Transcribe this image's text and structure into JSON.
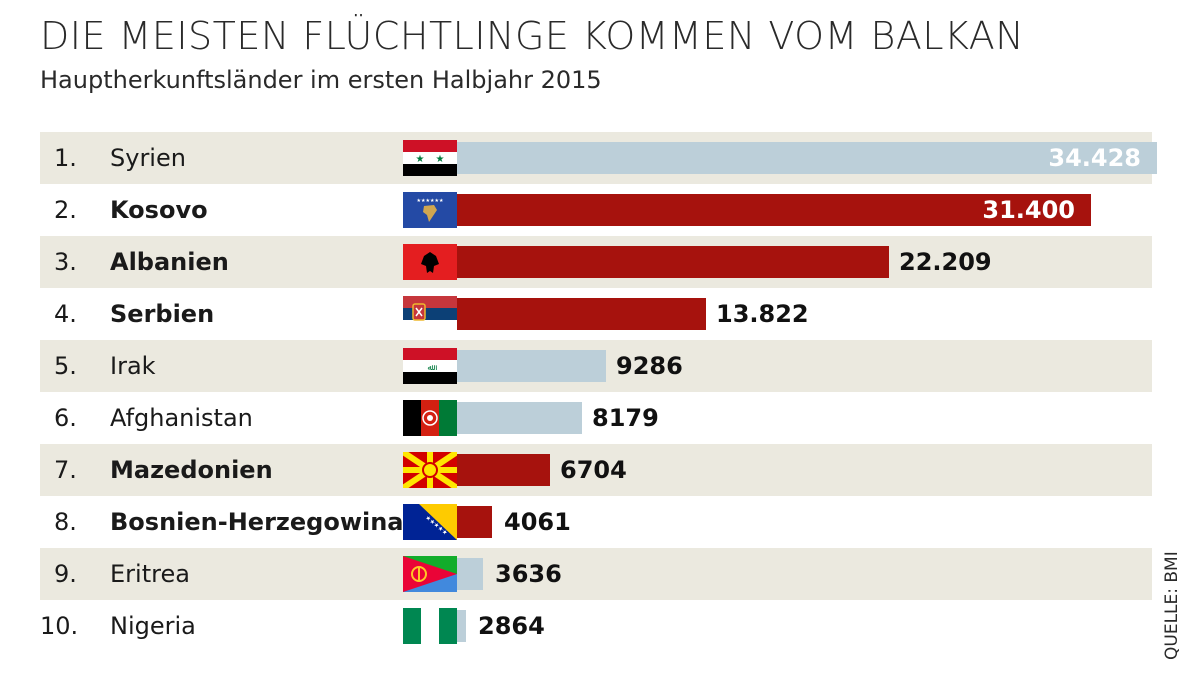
{
  "title": "DIE MEISTEN FLÜCHTLINGE KOMMEN VOM BALKAN",
  "subtitle": "Hauptherkunftsländer im ersten Halbjahr 2015",
  "source": "QUELLE: BMI",
  "colors": {
    "balkan": "#a6120d",
    "other": "#bccfd9",
    "stripe": "#ebe9df"
  },
  "chart_data": {
    "type": "bar",
    "orientation": "horizontal",
    "title": "DIE MEISTEN FLÜCHTLINGE KOMMEN VOM BALKAN",
    "subtitle": "Hauptherkunftsländer im ersten Halbjahr 2015",
    "xlim": [
      0,
      34428
    ],
    "grid": false,
    "legend": "none",
    "items": [
      {
        "rank": "1.",
        "country": "Syrien",
        "value": 34428,
        "label": "34.428",
        "balkan": false,
        "flag": "syria-flag-icon"
      },
      {
        "rank": "2.",
        "country": "Kosovo",
        "value": 31400,
        "label": "31.400",
        "balkan": true,
        "flag": "kosovo-flag-icon"
      },
      {
        "rank": "3.",
        "country": "Albanien",
        "value": 22209,
        "label": "22.209",
        "balkan": true,
        "flag": "albania-flag-icon"
      },
      {
        "rank": "4.",
        "country": "Serbien",
        "value": 13822,
        "label": "13.822",
        "balkan": true,
        "flag": "serbia-flag-icon"
      },
      {
        "rank": "5.",
        "country": "Irak",
        "value": 9286,
        "label": "9286",
        "balkan": false,
        "flag": "iraq-flag-icon"
      },
      {
        "rank": "6.",
        "country": "Afghanistan",
        "value": 8179,
        "label": "8179",
        "balkan": false,
        "flag": "afghanistan-flag-icon"
      },
      {
        "rank": "7.",
        "country": "Mazedonien",
        "value": 6704,
        "label": "6704",
        "balkan": true,
        "flag": "macedonia-flag-icon"
      },
      {
        "rank": "8.",
        "country": "Bosnien-Herzegowina",
        "value": 4061,
        "label": "4061",
        "balkan": true,
        "flag": "bosnia-flag-icon"
      },
      {
        "rank": "9.",
        "country": "Eritrea",
        "value": 3636,
        "label": "3636",
        "balkan": false,
        "flag": "eritrea-flag-icon"
      },
      {
        "rank": "10.",
        "country": "Nigeria",
        "value": 2864,
        "label": "2864",
        "balkan": false,
        "flag": "nigeria-flag-icon"
      }
    ]
  }
}
